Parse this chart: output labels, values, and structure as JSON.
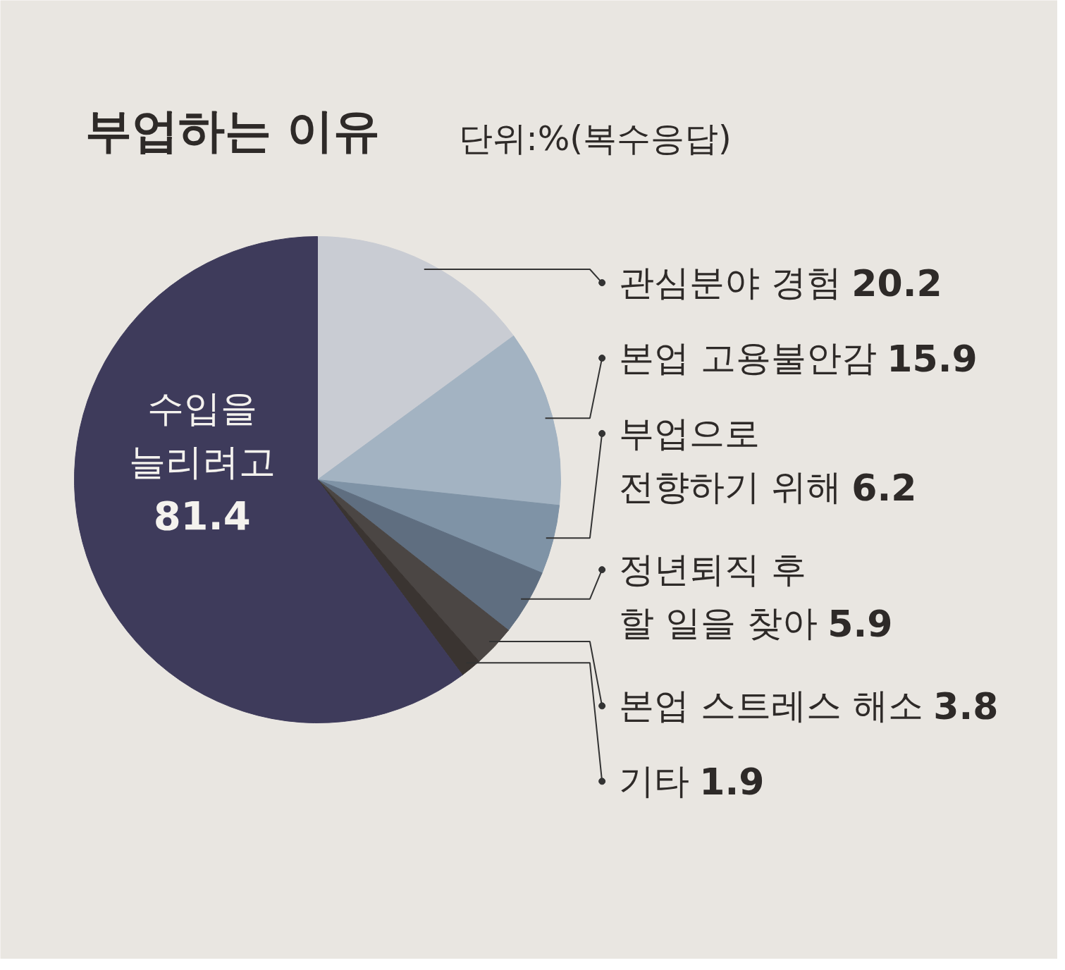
{
  "chart_data": {
    "type": "pie",
    "title": "부업하는 이유",
    "subtitle": "단위:%(복수응답)",
    "categories": [
      "관심분야 경험",
      "본업 고용불안감",
      "부업으로\n전향하기 위해",
      "정년퇴직 후\n할 일을 찾아",
      "본업 스트레스 해소",
      "기타",
      "수입을\n늘리려고"
    ],
    "values": [
      20.2,
      15.9,
      6.2,
      5.9,
      3.8,
      1.9,
      81.4
    ],
    "colors": [
      "#c9ccd3",
      "#a3b3c2",
      "#7f93a6",
      "#5f6e80",
      "#4b4644",
      "#3a3431",
      "#3e3b5b"
    ],
    "data_labels": true
  }
}
